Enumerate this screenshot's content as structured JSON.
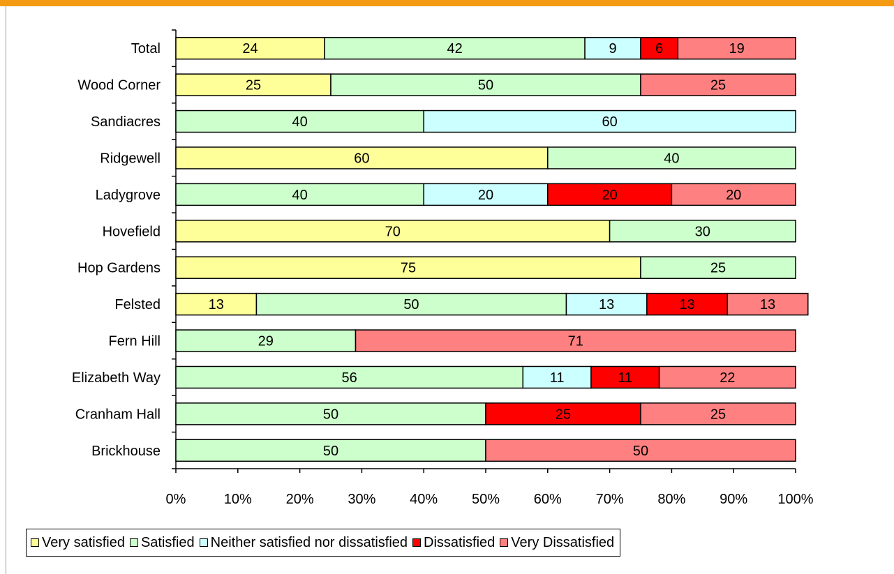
{
  "colors": {
    "accent_bar": "#f39c12",
    "frame_rule": "#9a9a9a"
  },
  "chart_data": {
    "type": "bar",
    "orientation": "horizontal",
    "stacked": "percent",
    "title": "",
    "xlabel": "",
    "ylabel": "",
    "xlim": [
      0,
      100
    ],
    "x_ticks": [
      "0%",
      "10%",
      "20%",
      "30%",
      "40%",
      "50%",
      "60%",
      "70%",
      "80%",
      "90%",
      "100%"
    ],
    "grid": false,
    "legend_position": "bottom",
    "categories": [
      "Total",
      "Wood Corner",
      "Sandiacres",
      "Ridgewell",
      "Ladygrove",
      "Hovefield",
      "Hop Gardens",
      "Felsted",
      "Fern Hill",
      "Elizabeth Way",
      "Cranham Hall",
      "Brickhouse"
    ],
    "series": [
      {
        "name": "Very satisfied",
        "color": "#ffff99",
        "values": [
          24,
          25,
          0,
          60,
          0,
          70,
          75,
          13,
          0,
          0,
          0,
          0
        ]
      },
      {
        "name": "Satisfied",
        "color": "#ccffcc",
        "values": [
          42,
          50,
          40,
          40,
          40,
          30,
          25,
          50,
          29,
          56,
          50,
          50
        ]
      },
      {
        "name": "Neither satisfied nor dissatisfied",
        "color": "#ccffff",
        "values": [
          9,
          0,
          60,
          0,
          20,
          0,
          0,
          13,
          0,
          11,
          0,
          0
        ]
      },
      {
        "name": "Dissatisfied",
        "color": "#ff0000",
        "values": [
          6,
          0,
          0,
          0,
          20,
          0,
          0,
          13,
          0,
          11,
          25,
          0
        ]
      },
      {
        "name": "Very Dissatisfied",
        "color": "#ff8080",
        "values": [
          19,
          25,
          0,
          0,
          20,
          0,
          0,
          13,
          71,
          22,
          25,
          50
        ]
      }
    ]
  }
}
